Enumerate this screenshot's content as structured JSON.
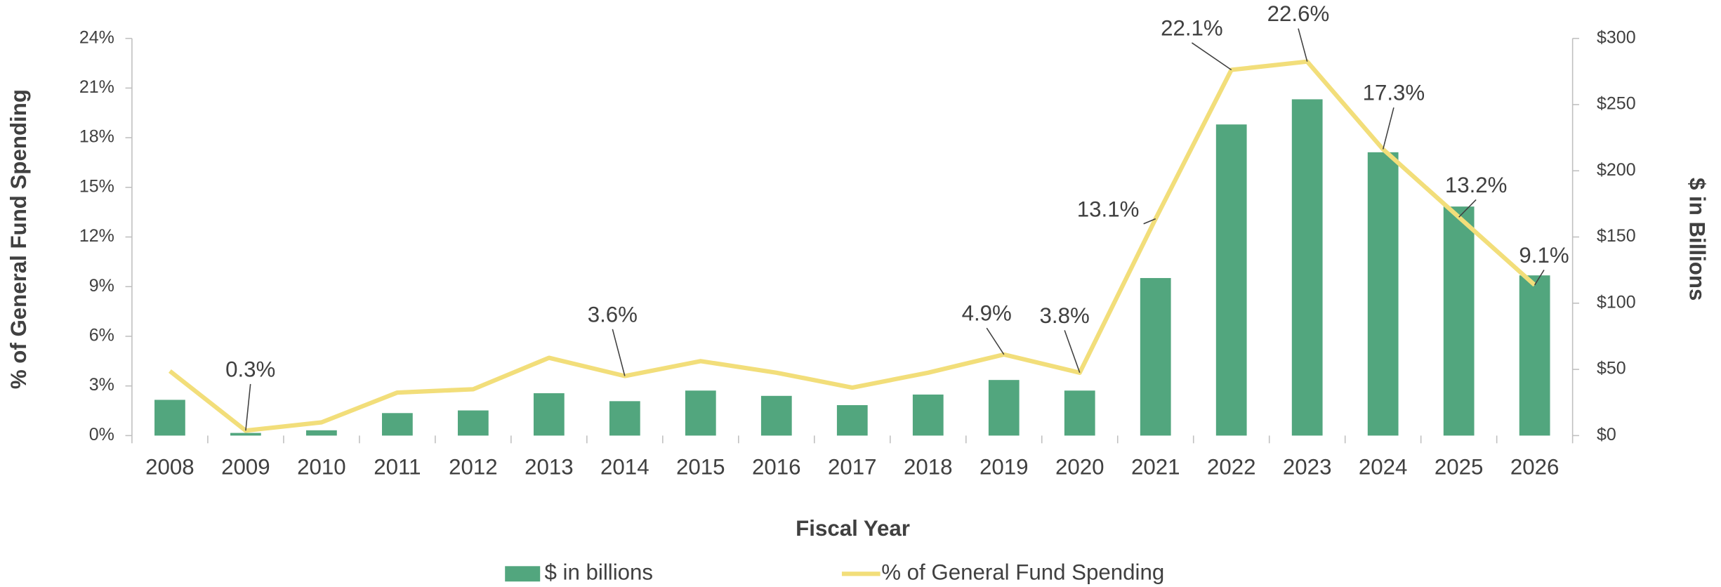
{
  "chart_data": {
    "type": "bar",
    "x_label": "Fiscal Year",
    "y_label": "% of General Fund Spending",
    "y2_label": "$ in Billions",
    "categories": [
      "2008",
      "2009",
      "2010",
      "2011",
      "2012",
      "2013",
      "2014",
      "2015",
      "2016",
      "2017",
      "2018",
      "2019",
      "2020",
      "2021",
      "2022",
      "2023",
      "2024",
      "2025",
      "2026"
    ],
    "series": [
      {
        "name": "$ in billions",
        "type": "bar",
        "axis": "y2",
        "color": "#52a67e",
        "values": [
          27,
          2,
          4,
          17,
          19,
          32,
          26,
          34,
          30,
          23,
          31,
          42,
          34,
          119,
          235,
          254,
          214,
          173,
          121
        ]
      },
      {
        "name": "% of General Fund Spending",
        "type": "line",
        "axis": "y",
        "color": "#f2de7a",
        "values": [
          3.9,
          0.3,
          0.8,
          2.6,
          2.8,
          4.7,
          3.6,
          4.5,
          3.8,
          2.9,
          3.8,
          4.9,
          3.8,
          13.1,
          22.1,
          22.6,
          17.3,
          13.2,
          9.1
        ],
        "value_labels": [
          null,
          "0.3%",
          null,
          null,
          null,
          null,
          "3.6%",
          null,
          null,
          null,
          null,
          "4.9%",
          "3.8%",
          "13.1%",
          "22.1%",
          "22.6%",
          "17.3%",
          "13.2%",
          "9.1%"
        ]
      }
    ],
    "ylim": [
      0,
      24
    ],
    "yticks": [
      {
        "value": 0,
        "label": "0%"
      },
      {
        "value": 3,
        "label": "3%"
      },
      {
        "value": 6,
        "label": "6%"
      },
      {
        "value": 9,
        "label": "9%"
      },
      {
        "value": 12,
        "label": "12%"
      },
      {
        "value": 15,
        "label": "15%"
      },
      {
        "value": 18,
        "label": "18%"
      },
      {
        "value": 21,
        "label": "21%"
      },
      {
        "value": 24,
        "label": "24%"
      }
    ],
    "y2lim": [
      0,
      300
    ],
    "y2ticks": [
      {
        "value": 0,
        "label": "$0"
      },
      {
        "value": 50,
        "label": "$50"
      },
      {
        "value": 100,
        "label": "$100"
      },
      {
        "value": 150,
        "label": "$150"
      },
      {
        "value": 200,
        "label": "$200"
      },
      {
        "value": 250,
        "label": "$250"
      },
      {
        "value": 300,
        "label": "$300"
      }
    ],
    "legend": "bottom"
  }
}
